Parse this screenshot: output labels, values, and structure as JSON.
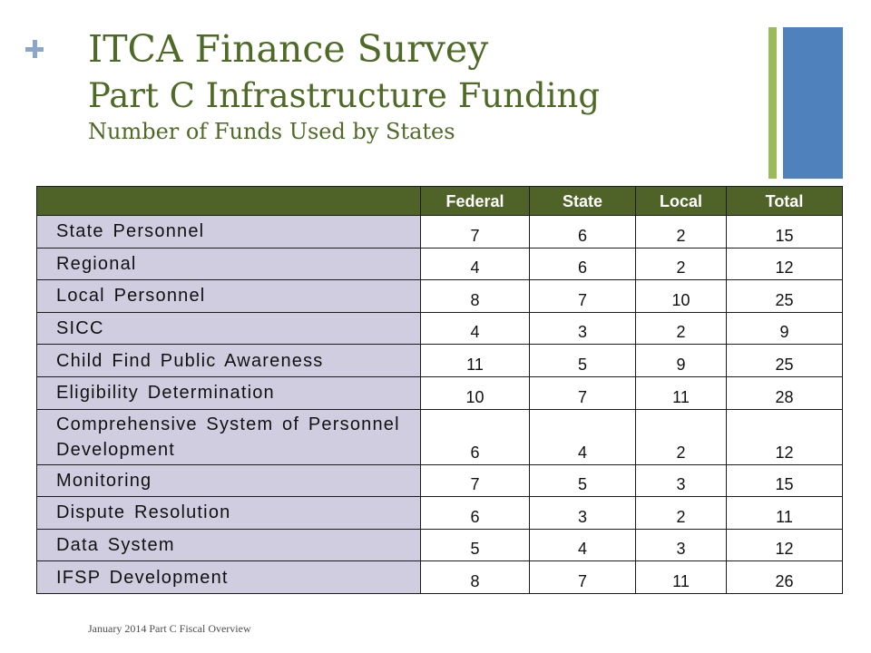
{
  "slide": {
    "title": "ITCA Finance Survey",
    "subtitle": "Part C Infrastructure Funding",
    "caption": "Number of Funds Used by States",
    "footer": "January 2014 Part C Fiscal Overview"
  },
  "icons": {
    "corner_marker": "plus-icon"
  },
  "theme": {
    "title_green": "#4F6A27",
    "header_green": "#4F6228",
    "accent_green": "#9BBB59",
    "accent_blue": "#4F81BD",
    "plus_blue": "#8CA5CB",
    "label_fill": "#D0CDE1"
  },
  "chart_data": {
    "type": "table",
    "columns": [
      "Federal",
      "State",
      "Local",
      "Total"
    ],
    "rows": [
      {
        "label": "State Personnel",
        "values": [
          7,
          6,
          2,
          15
        ]
      },
      {
        "label": "Regional",
        "values": [
          4,
          6,
          2,
          12
        ]
      },
      {
        "label": "Local Personnel",
        "values": [
          8,
          7,
          10,
          25
        ]
      },
      {
        "label": "SICC",
        "values": [
          4,
          3,
          2,
          9
        ]
      },
      {
        "label": "Child Find Public Awareness",
        "values": [
          11,
          5,
          9,
          25
        ]
      },
      {
        "label": "Eligibility Determination",
        "values": [
          10,
          7,
          11,
          28
        ]
      },
      {
        "label": "Comprehensive System of Personnel Development",
        "values": [
          6,
          4,
          2,
          12
        ]
      },
      {
        "label": "Monitoring",
        "values": [
          7,
          5,
          3,
          15
        ]
      },
      {
        "label": "Dispute Resolution",
        "values": [
          6,
          3,
          2,
          11
        ]
      },
      {
        "label": "Data System",
        "values": [
          5,
          4,
          3,
          12
        ]
      },
      {
        "label": "IFSP Development",
        "values": [
          8,
          7,
          11,
          26
        ]
      }
    ]
  }
}
